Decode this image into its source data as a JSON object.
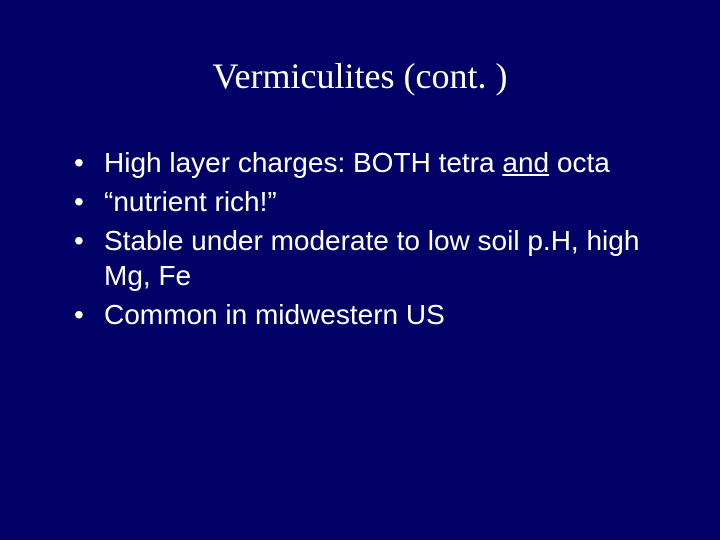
{
  "background_color": "#000066",
  "text_color": "#ffffff",
  "title": "Vermiculites (cont. )",
  "title_fontsize": 36,
  "title_font": "Times New Roman",
  "bullet_fontsize": 28,
  "bullets": [
    {
      "pre": "High layer charges: BOTH tetra ",
      "underlined": "and",
      "post": " octa"
    },
    {
      "pre": "“nutrient rich!”",
      "underlined": "",
      "post": ""
    },
    {
      "pre": "Stable under moderate to low soil p.H, high Mg, Fe",
      "underlined": "",
      "post": ""
    },
    {
      "pre": "Common in midwestern US",
      "underlined": "",
      "post": ""
    }
  ]
}
